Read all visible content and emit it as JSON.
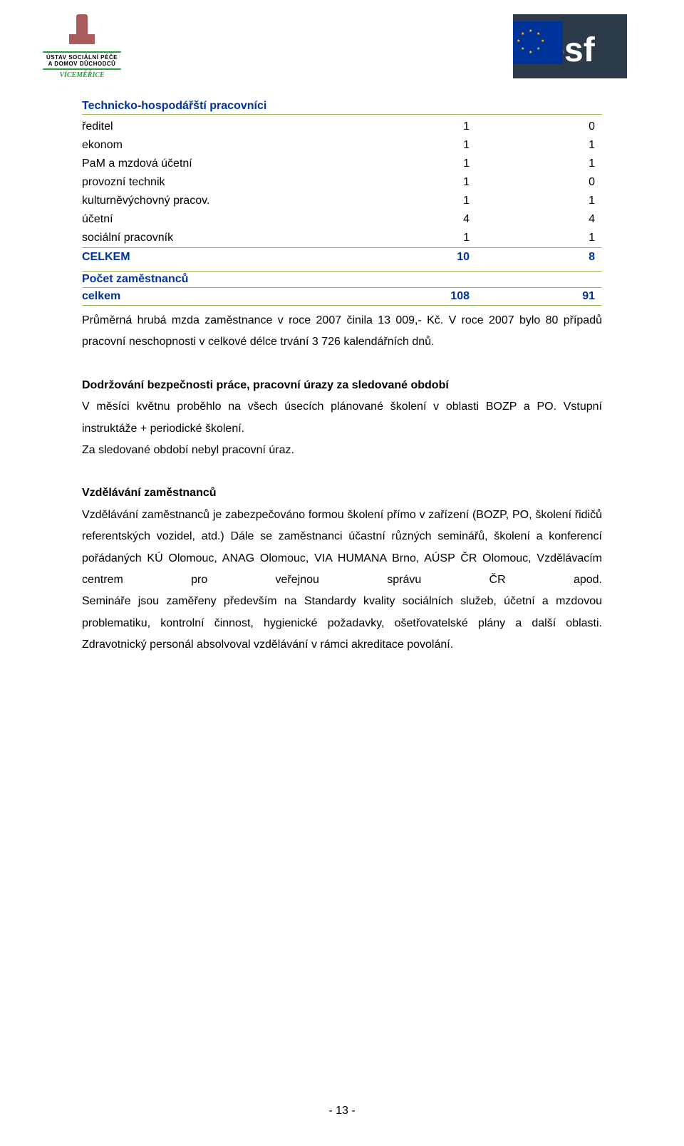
{
  "header": {
    "logo_line1": "ÚSTAV SOCIÁLNÍ PÉČE",
    "logo_line2": "A DOMOV DŮCHODCŮ",
    "logo_line3": "VÍCEMĚŘICE",
    "esf_text": "esf"
  },
  "section1": {
    "title": "Technicko-hospodářští pracovníci",
    "rows": [
      {
        "label": "ředitel",
        "c1": "1",
        "c2": "0"
      },
      {
        "label": "ekonom",
        "c1": "1",
        "c2": "1"
      },
      {
        "label": "PaM a mzdová účetní",
        "c1": "1",
        "c2": "1"
      },
      {
        "label": "provozní technik",
        "c1": "1",
        "c2": "0"
      },
      {
        "label": "kulturněvýchovný pracov.",
        "c1": "1",
        "c2": "1"
      },
      {
        "label": "účetní",
        "c1": "4",
        "c2": "4"
      },
      {
        "label": "sociální pracovník",
        "c1": "1",
        "c2": "1"
      }
    ],
    "total_label": "CELKEM",
    "total_c1": "10",
    "total_c2": "8"
  },
  "section2": {
    "label": "Počet zaměstnanců",
    "row_label": "celkem",
    "c1": "108",
    "c2": "91"
  },
  "para1": "Průměrná hrubá mzda zaměstnance v roce 2007 činila 13 009,- Kč. V roce 2007 bylo 80 případů pracovní neschopnosti v celkové délce trvání 3 726 kalendářních dnů.",
  "heading2": "Dodržování bezpečnosti práce, pracovní úrazy za sledované období",
  "para2": "V měsíci květnu proběhlo na všech úsecích plánované školení v oblasti BOZP a PO. Vstupní instruktáže + periodické školení.",
  "para2b": "Za sledované období nebyl pracovní úraz.",
  "heading3": "Vzdělávání zaměstnanců",
  "para3": "Vzdělávání zaměstnanců je zabezpečováno formou školení přímo v zařízení (BOZP, PO, školení řidičů referentských vozidel, atd.) Dále se zaměstnanci účastní různých seminářů, školení a konferencí pořádaných KÚ Olomouc, ANAG Olomouc, VIA HUMANA Brno, AÚSP ČR Olomouc, Vzdělávacím centrem pro veřejnou správu ČR apod.",
  "para4": "Semináře jsou zaměřeny především na Standardy kvality sociálních služeb, účetní a mzdovou problematiku, kontrolní činnost, hygienické požadavky, ošetřovatelské plány a další oblasti. Zdravotnický personál absolvoval vzdělávání v rámci akreditace povolání.",
  "page_number": "- 13 -",
  "colors": {
    "heading_blue": "#003399",
    "rule_green": "#9bbb59",
    "body_black": "#000000",
    "logo_green": "#2a9d3a"
  }
}
